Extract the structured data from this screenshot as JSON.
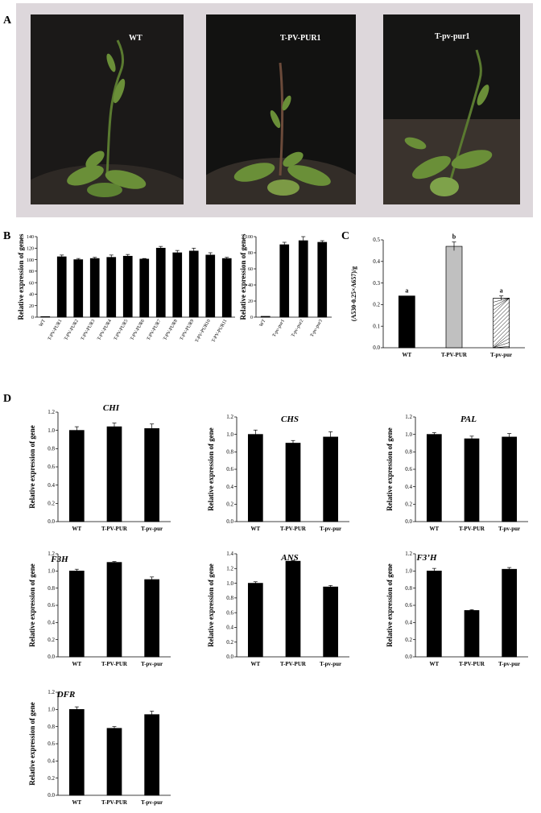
{
  "panel_labels": {
    "a": "A",
    "b": "B",
    "c": "C",
    "d": "D"
  },
  "photos": [
    {
      "caption": "WT",
      "bg": "#1b1918",
      "pot": "#2e2925"
    },
    {
      "caption": "T-PV-PUR1",
      "bg": "#121211",
      "pot": "#332d28"
    },
    {
      "caption": "T-pv-pur1",
      "bg": "#151514",
      "pot": "#3a332d"
    }
  ],
  "colors": {
    "bar": "#000000",
    "wt_bar": "#000000",
    "pur_bar": "#c0c0c0",
    "pv_bar": "#ffffff",
    "leaf": "#6a8f38",
    "stem": "#5a7a30"
  },
  "chart_data": [
    {
      "id": "B1",
      "type": "bar",
      "ylabel": "Relative expression of genes",
      "ylim": [
        0,
        140
      ],
      "yticks": [
        0,
        20,
        40,
        60,
        80,
        100,
        120,
        140
      ],
      "categories": [
        "WT",
        "T-PV-PUR1",
        "T-PV-PUR2",
        "T-PV-PUR3",
        "T-PV-PUR4",
        "T-PV-PUR5",
        "T-PV-PUR6",
        "T-PV-PUR7",
        "T-PV-PUR8",
        "T-PV-PUR9",
        "T-PV-PUR10",
        "T-PV-PUR11"
      ],
      "values": [
        1,
        105,
        100,
        102,
        104,
        106,
        101,
        120,
        112,
        115,
        108,
        102
      ],
      "errors": [
        0,
        3,
        2,
        2,
        4,
        3,
        1,
        3,
        4,
        5,
        4,
        2
      ]
    },
    {
      "id": "B2",
      "type": "bar",
      "ylabel": "Relative expression of genes",
      "ylim": [
        0,
        100
      ],
      "yticks": [
        0,
        20,
        40,
        60,
        80,
        100
      ],
      "categories": [
        "WT",
        "T-pv-pur1",
        "T-pv-pur2",
        "T-pv-pur3"
      ],
      "values": [
        1,
        90,
        95,
        93
      ],
      "errors": [
        0,
        3,
        5,
        2
      ]
    },
    {
      "id": "C",
      "type": "bar",
      "ylabel": "(A530-0.25×A657)/g",
      "ylim": [
        0,
        0.5
      ],
      "yticks": [
        "0.0",
        "0.1",
        "0.2",
        "0.3",
        "0.4",
        "0.5"
      ],
      "categories": [
        "WT",
        "T-PV-PUR",
        "T-pv-pur"
      ],
      "values": [
        0.24,
        0.47,
        0.23
      ],
      "errors": [
        0,
        0.02,
        0.01
      ],
      "letters": [
        "a",
        "b",
        "a"
      ]
    },
    {
      "id": "CHI",
      "type": "bar",
      "gene": "CHI",
      "ylabel": "Relative expression of gene",
      "ylim": [
        0,
        1.2
      ],
      "yticks": [
        "0.0",
        "0.2",
        "0.4",
        "0.6",
        "0.8",
        "1.0",
        "1.2"
      ],
      "categories": [
        "WT",
        "T-PV-PUR",
        "T-pv-pur"
      ],
      "values": [
        1.0,
        1.04,
        1.02
      ],
      "errors": [
        0.04,
        0.04,
        0.05
      ]
    },
    {
      "id": "CHS",
      "type": "bar",
      "gene": "CHS",
      "ylabel": "Relative expression of gene",
      "ylim": [
        0,
        1.2
      ],
      "yticks": [
        "0.0",
        "0.2",
        "0.4",
        "0.6",
        "0.8",
        "1.0",
        "1.2"
      ],
      "categories": [
        "WT",
        "T-PV-PUR",
        "T-pv-pur"
      ],
      "values": [
        1.0,
        0.9,
        0.97
      ],
      "errors": [
        0.05,
        0.03,
        0.06
      ]
    },
    {
      "id": "PAL",
      "type": "bar",
      "gene": "PAL",
      "ylabel": "Relative expression of gene",
      "ylim": [
        0,
        1.2
      ],
      "yticks": [
        "0.0",
        "0.2",
        "0.4",
        "0.6",
        "0.8",
        "1.0",
        "1.2"
      ],
      "categories": [
        "WT",
        "T-PV-PUR",
        "T-pv-pur"
      ],
      "values": [
        1.0,
        0.95,
        0.97
      ],
      "errors": [
        0.02,
        0.03,
        0.04
      ]
    },
    {
      "id": "F3H",
      "type": "bar",
      "gene": "F3H",
      "ylabel": "Relative expression of gene",
      "ylim": [
        0,
        1.2
      ],
      "yticks": [
        "0.0",
        "0.2",
        "0.4",
        "0.6",
        "0.8",
        "1.0",
        "1.2"
      ],
      "categories": [
        "WT",
        "T-PV-PUR",
        "T-pv-pur"
      ],
      "values": [
        1.0,
        1.1,
        0.9
      ],
      "errors": [
        0.02,
        0.01,
        0.03
      ]
    },
    {
      "id": "ANS",
      "type": "bar",
      "gene": "ANS",
      "ylabel": "Relative expression of gene",
      "ylim": [
        0,
        1.4
      ],
      "yticks": [
        "0.0",
        "0.2",
        "0.4",
        "0.6",
        "0.8",
        "1.0",
        "1.2",
        "1.4"
      ],
      "categories": [
        "WT",
        "T-PV-PUR",
        "T-pv-pur"
      ],
      "values": [
        1.0,
        1.3,
        0.95
      ],
      "errors": [
        0.02,
        0.01,
        0.02
      ]
    },
    {
      "id": "F3pH",
      "type": "bar",
      "gene": "F3’H",
      "ylabel": "Relative expression of gene",
      "ylim": [
        0,
        1.2
      ],
      "yticks": [
        "0.0",
        "0.2",
        "0.4",
        "0.6",
        "0.8",
        "1.0",
        "1.2"
      ],
      "categories": [
        "WT",
        "T-PV-PUR",
        "T-pv-pur"
      ],
      "values": [
        1.0,
        0.54,
        1.02
      ],
      "errors": [
        0.03,
        0.01,
        0.02
      ]
    },
    {
      "id": "DFR",
      "type": "bar",
      "gene": "DFR",
      "ylabel": "Relative expression of gene",
      "ylim": [
        0,
        1.2
      ],
      "yticks": [
        "0.0",
        "0.2",
        "0.4",
        "0.6",
        "0.8",
        "1.0",
        "1.2"
      ],
      "categories": [
        "WT",
        "T-PV-PUR",
        "T-pv-pur"
      ],
      "values": [
        1.0,
        0.78,
        0.94
      ],
      "errors": [
        0.03,
        0.02,
        0.04
      ]
    }
  ]
}
